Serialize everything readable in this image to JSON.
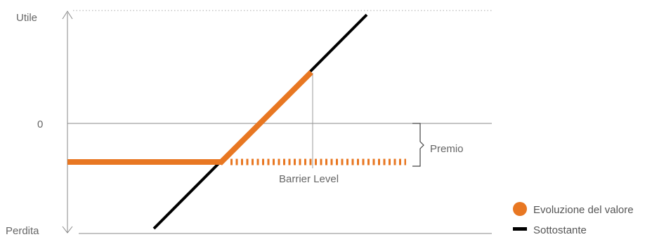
{
  "axis": {
    "top_label": "Utile",
    "zero_label": "0",
    "bottom_label": "Perdita"
  },
  "annotations": {
    "premium_label": "Premio",
    "barrier_label": "Barrier Level"
  },
  "legend": [
    {
      "label": "Evoluzione del valore",
      "color": "#E87722",
      "marker": "circle"
    },
    {
      "label": "Sottostante",
      "color": "#000000",
      "marker": "bar"
    }
  ],
  "colors": {
    "payoff": "#E87722",
    "underlying": "#000000",
    "axis": "#888888",
    "text": "#666666"
  }
}
